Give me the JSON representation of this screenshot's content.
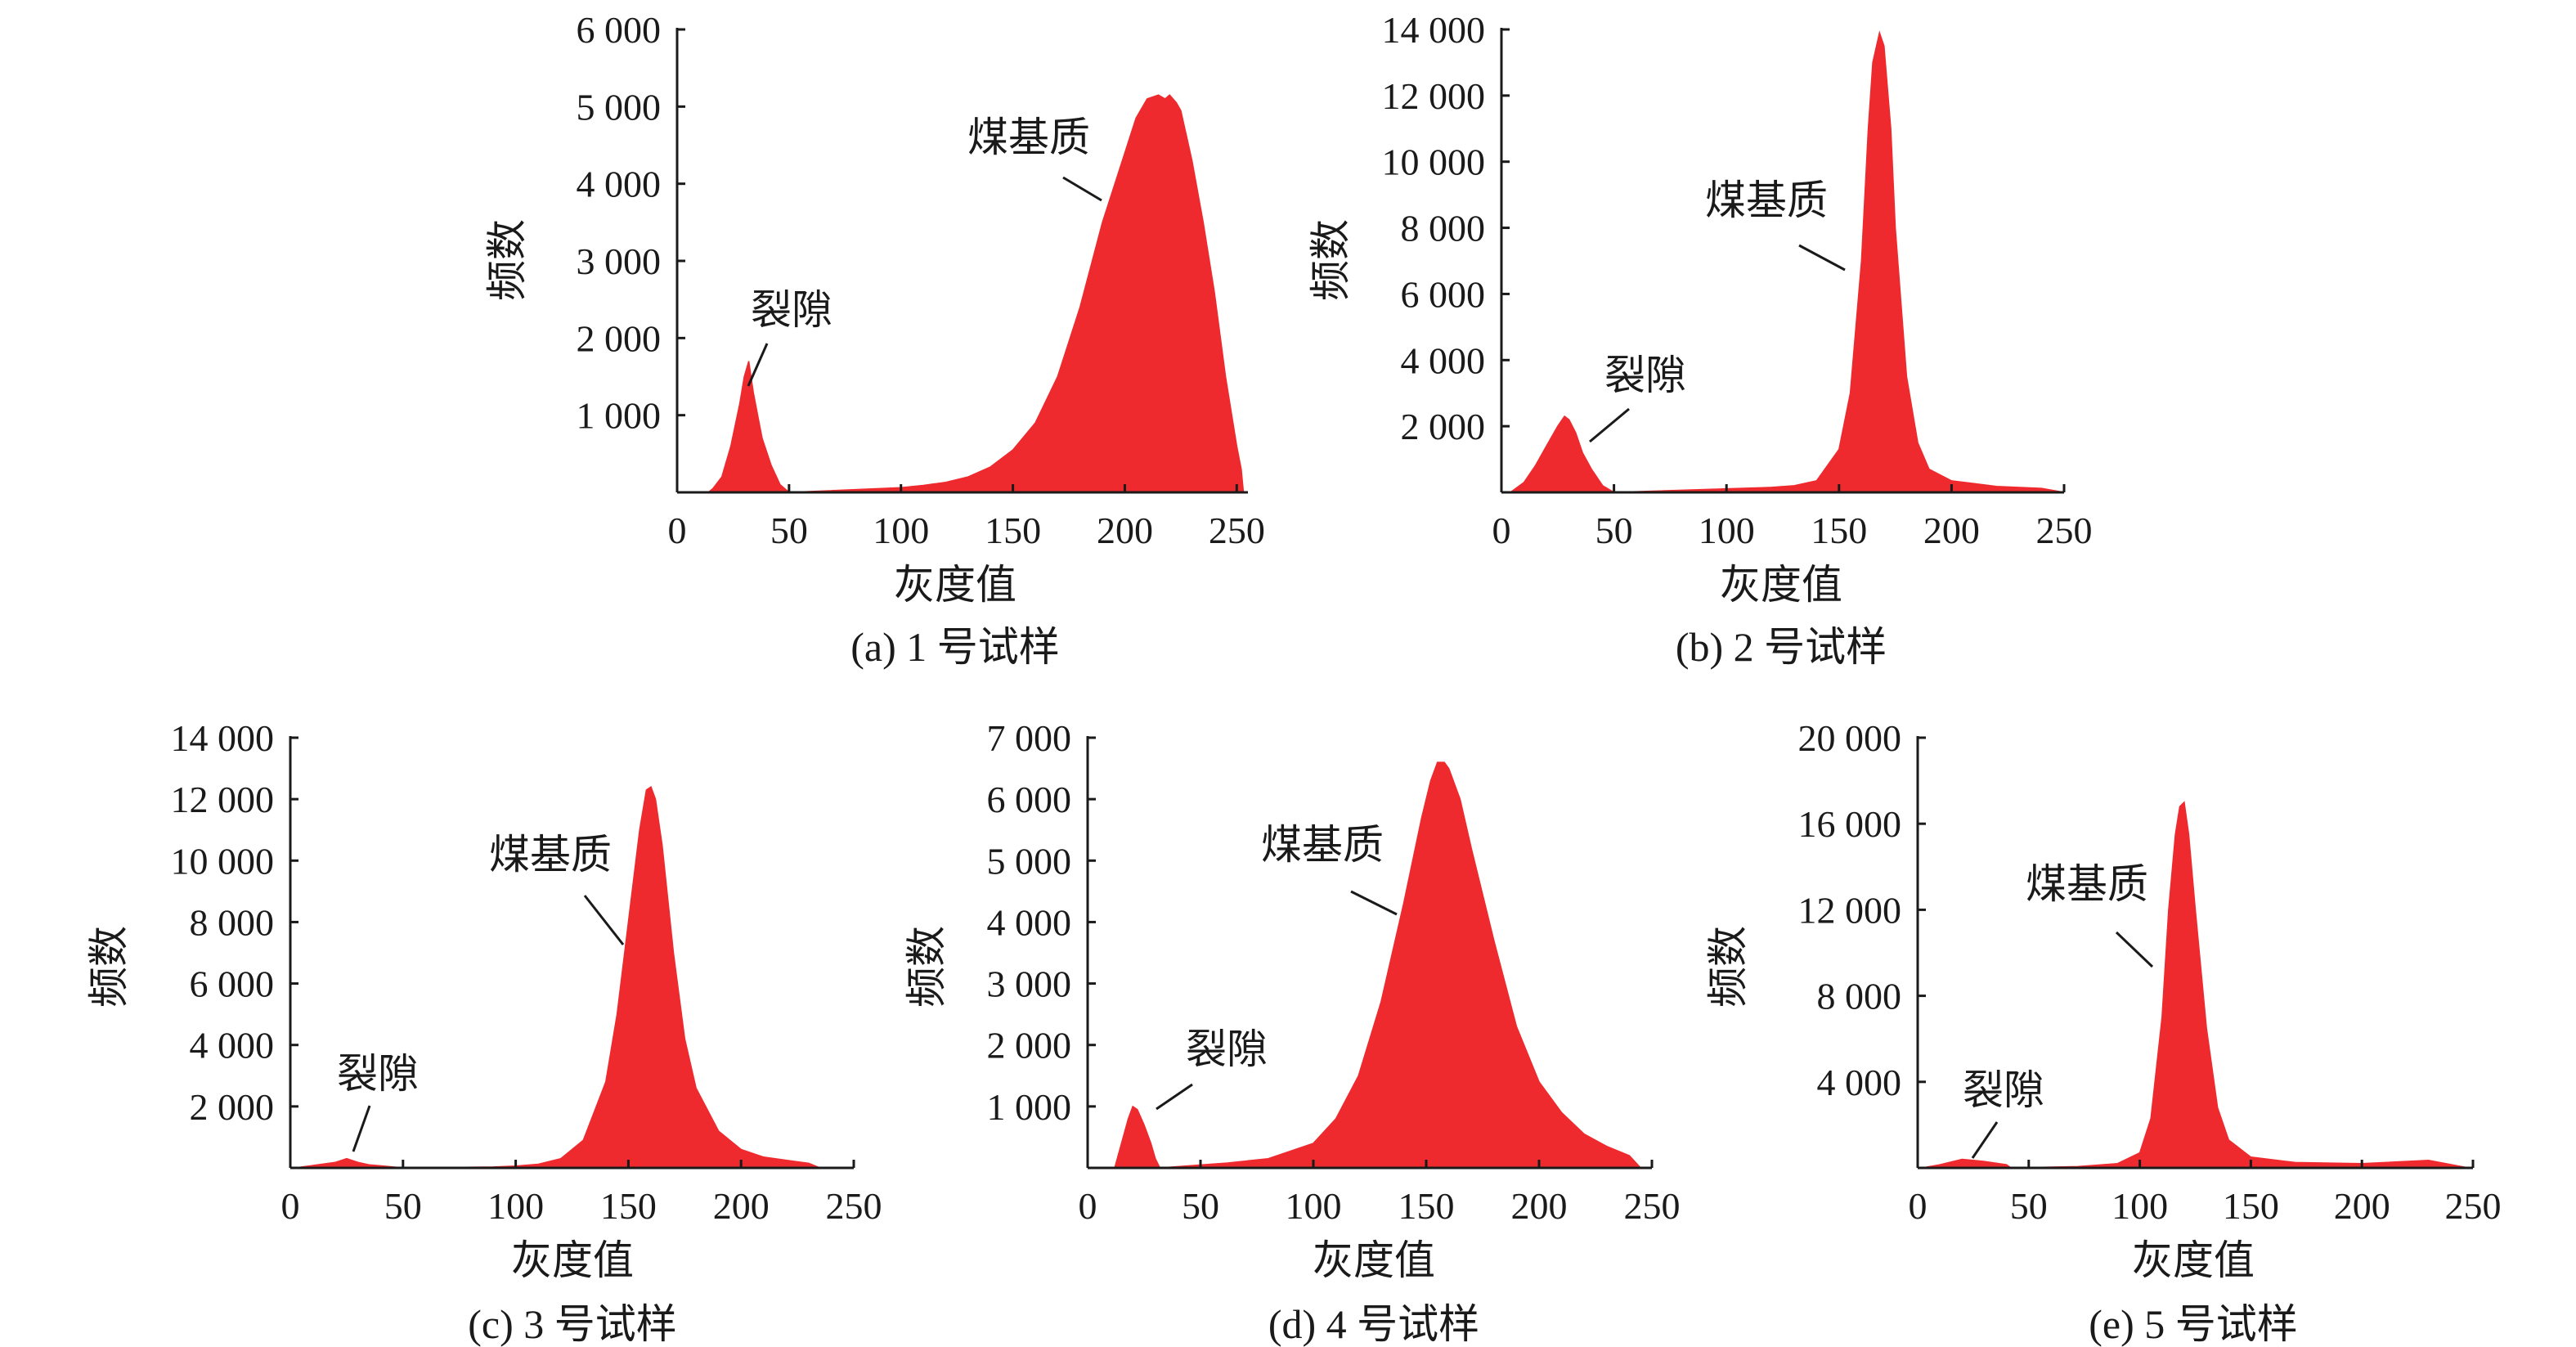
{
  "chart_data": [
    {
      "type": "area",
      "caption": "(a) 1 号试样",
      "xlabel": "灰度值",
      "ylabel": "频数",
      "xlim": [
        0,
        255
      ],
      "ylim": [
        0,
        6000
      ],
      "xticks": [
        0,
        50,
        100,
        150,
        200,
        250
      ],
      "xtick_labels": [
        "0",
        "50",
        "100",
        "150",
        "200",
        "250"
      ],
      "yticks": [
        1000,
        2000,
        3000,
        4000,
        5000,
        6000
      ],
      "ytick_labels": [
        "1 000",
        "2 000",
        "3 000",
        "4 000",
        "5 000",
        "6 000"
      ],
      "fill_color": "#ee2a2e",
      "series": [
        {
          "x": [
            14,
            16,
            20,
            24,
            28,
            30,
            32,
            34,
            36,
            38,
            42,
            46,
            48,
            50,
            100,
            110,
            120,
            130,
            140,
            150,
            160,
            170,
            180,
            190,
            200,
            205,
            210,
            215,
            218,
            220,
            223,
            225,
            230,
            235,
            240,
            245,
            250,
            252,
            253
          ],
          "y": [
            0,
            50,
            200,
            600,
            1150,
            1500,
            1700,
            1300,
            1000,
            700,
            350,
            100,
            50,
            0,
            60,
            90,
            130,
            200,
            330,
            550,
            900,
            1500,
            2400,
            3500,
            4400,
            4850,
            5100,
            5150,
            5100,
            5150,
            5050,
            4950,
            4300,
            3500,
            2600,
            1500,
            600,
            300,
            0
          ]
        }
      ],
      "annotations": [
        {
          "text": "裂隙",
          "x": 32,
          "y": 1500
        },
        {
          "text": "煤基质",
          "x": 193,
          "y": 3800
        }
      ]
    },
    {
      "type": "area",
      "caption": "(b) 2 号试样",
      "xlabel": "灰度值",
      "ylabel": "频数",
      "xlim": [
        0,
        250
      ],
      "ylim": [
        0,
        14000
      ],
      "xticks": [
        0,
        50,
        100,
        150,
        200,
        250
      ],
      "xtick_labels": [
        "0",
        "50",
        "100",
        "150",
        "200",
        "250"
      ],
      "yticks": [
        2000,
        4000,
        6000,
        8000,
        10000,
        12000,
        14000
      ],
      "ytick_labels": [
        "2 000",
        "4 000",
        "6 000",
        "8 000",
        "10 000",
        "12 000",
        "14 000"
      ],
      "fill_color": "#ee2a2e",
      "series": [
        {
          "x": [
            4,
            10,
            15,
            20,
            25,
            28,
            30,
            33,
            36,
            40,
            45,
            50,
            120,
            130,
            140,
            150,
            155,
            160,
            163,
            165,
            168,
            170,
            173,
            175,
            180,
            185,
            190,
            200,
            220,
            240,
            250
          ],
          "y": [
            0,
            300,
            800,
            1400,
            2000,
            2300,
            2200,
            1800,
            1200,
            700,
            200,
            0,
            150,
            200,
            350,
            1300,
            3000,
            7000,
            11000,
            13000,
            13900,
            13500,
            11000,
            8000,
            3500,
            1500,
            700,
            350,
            180,
            120,
            0
          ]
        }
      ],
      "annotations": [
        {
          "text": "裂隙",
          "x": 30,
          "y": 2200
        },
        {
          "text": "煤基质",
          "x": 163,
          "y": 7000
        }
      ]
    },
    {
      "type": "area",
      "caption": "(c) 3 号试样",
      "xlabel": "灰度值",
      "ylabel": "频数",
      "xlim": [
        0,
        250
      ],
      "ylim": [
        0,
        14000
      ],
      "xticks": [
        0,
        50,
        100,
        150,
        200,
        250
      ],
      "xtick_labels": [
        "0",
        "50",
        "100",
        "150",
        "200",
        "250"
      ],
      "yticks": [
        2000,
        4000,
        6000,
        8000,
        10000,
        12000,
        14000
      ],
      "ytick_labels": [
        "2 000",
        "4 000",
        "6 000",
        "8 000",
        "10 000",
        "12 000",
        "14 000"
      ],
      "fill_color": "#ee2a2e",
      "series": [
        {
          "x": [
            2,
            10,
            20,
            25,
            30,
            35,
            40,
            50,
            90,
            100,
            110,
            120,
            130,
            140,
            145,
            150,
            155,
            158,
            160,
            162,
            165,
            170,
            175,
            180,
            190,
            200,
            210,
            220,
            230,
            235
          ],
          "y": [
            0,
            80,
            180,
            300,
            180,
            100,
            70,
            0,
            30,
            60,
            120,
            300,
            900,
            2800,
            5000,
            8000,
            11000,
            12300,
            12400,
            12000,
            10500,
            7000,
            4200,
            2600,
            1200,
            600,
            350,
            250,
            150,
            0
          ]
        }
      ],
      "annotations": [
        {
          "text": "裂隙",
          "x": 24,
          "y": 300
        },
        {
          "text": "煤基质",
          "x": 151,
          "y": 7200
        }
      ]
    },
    {
      "type": "area",
      "caption": "(d) 4 号试样",
      "xlabel": "灰度值",
      "ylabel": "频数",
      "xlim": [
        0,
        250
      ],
      "ylim": [
        0,
        7000
      ],
      "xticks": [
        0,
        50,
        100,
        150,
        200,
        250
      ],
      "xtick_labels": [
        "0",
        "50",
        "100",
        "150",
        "200",
        "250"
      ],
      "yticks": [
        1000,
        2000,
        3000,
        4000,
        5000,
        6000,
        7000
      ],
      "ytick_labels": [
        "1 000",
        "2 000",
        "3 000",
        "4 000",
        "5 000",
        "6 000",
        "7 000"
      ],
      "fill_color": "#ee2a2e",
      "series": [
        {
          "x": [
            12,
            15,
            18,
            20,
            22,
            25,
            28,
            30,
            32,
            62,
            80,
            100,
            110,
            120,
            130,
            140,
            148,
            152,
            155,
            158,
            160,
            165,
            170,
            180,
            190,
            200,
            210,
            220,
            230,
            240,
            245
          ],
          "y": [
            0,
            400,
            800,
            1000,
            950,
            700,
            400,
            150,
            0,
            80,
            150,
            400,
            800,
            1500,
            2700,
            4300,
            5700,
            6300,
            6600,
            6600,
            6500,
            6000,
            5200,
            3700,
            2300,
            1400,
            900,
            550,
            350,
            200,
            0
          ]
        }
      ],
      "annotations": [
        {
          "text": "裂隙",
          "x": 22,
          "y": 950
        },
        {
          "text": "煤基质",
          "x": 139,
          "y": 4200
        }
      ]
    },
    {
      "type": "area",
      "caption": "(e) 5 号试样",
      "xlabel": "灰度值",
      "ylabel": "频数",
      "xlim": [
        0,
        250
      ],
      "ylim": [
        0,
        20000
      ],
      "xticks": [
        0,
        50,
        100,
        150,
        200,
        250
      ],
      "xtick_labels": [
        "0",
        "50",
        "100",
        "150",
        "200",
        "250"
      ],
      "yticks": [
        4000,
        8000,
        12000,
        16000,
        20000
      ],
      "ytick_labels": [
        "4 000",
        "8 000",
        "12 000",
        "16 000",
        "20 000"
      ],
      "fill_color": "#ee2a2e",
      "series": [
        {
          "x": [
            2,
            10,
            20,
            30,
            40,
            42,
            72,
            90,
            100,
            105,
            110,
            113,
            116,
            118,
            120,
            122,
            125,
            130,
            135,
            140,
            150,
            170,
            200,
            230,
            248
          ],
          "y": [
            0,
            150,
            400,
            300,
            150,
            0,
            60,
            200,
            700,
            2300,
            7000,
            12000,
            15500,
            16800,
            17000,
            15500,
            12000,
            6500,
            2800,
            1300,
            500,
            250,
            200,
            350,
            0
          ]
        }
      ],
      "annotations": [
        {
          "text": "裂隙",
          "x": 24,
          "y": 400
        },
        {
          "text": "煤基质",
          "x": 112,
          "y": 9500
        }
      ]
    }
  ]
}
